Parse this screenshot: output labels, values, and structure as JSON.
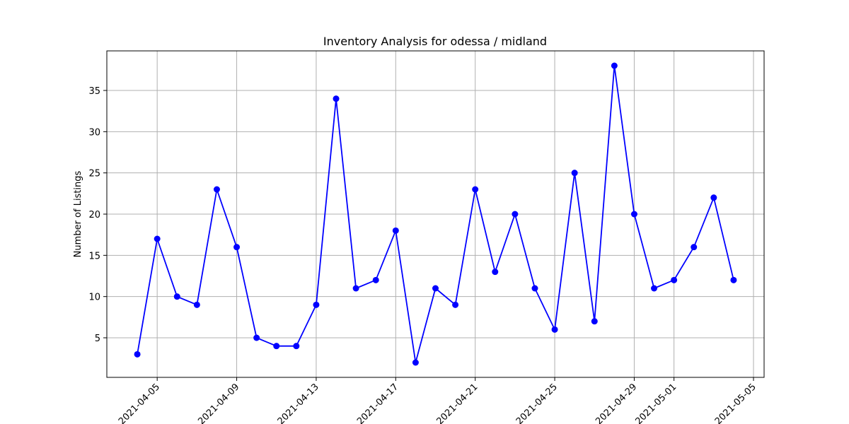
{
  "chart_data": {
    "type": "line",
    "title": "Inventory Analysis for odessa / midland",
    "xlabel": "",
    "ylabel": "Number of Listings",
    "x": [
      "2021-04-04",
      "2021-04-05",
      "2021-04-06",
      "2021-04-07",
      "2021-04-08",
      "2021-04-09",
      "2021-04-10",
      "2021-04-11",
      "2021-04-12",
      "2021-04-13",
      "2021-04-14",
      "2021-04-15",
      "2021-04-16",
      "2021-04-17",
      "2021-04-18",
      "2021-04-19",
      "2021-04-20",
      "2021-04-21",
      "2021-04-22",
      "2021-04-23",
      "2021-04-24",
      "2021-04-25",
      "2021-04-26",
      "2021-04-27",
      "2021-04-28",
      "2021-04-29",
      "2021-04-30",
      "2021-05-01",
      "2021-05-02",
      "2021-05-03",
      "2021-05-04"
    ],
    "series": [
      {
        "values": [
          3,
          17,
          10,
          9,
          23,
          16,
          5,
          4,
          4,
          9,
          34,
          11,
          12,
          18,
          2,
          11,
          9,
          23,
          13,
          20,
          11,
          6,
          25,
          7,
          38,
          20,
          11,
          12,
          16,
          22,
          12
        ],
        "color": "#0000ff",
        "marker": "circle"
      }
    ],
    "xticks": [
      "2021-04-05",
      "2021-04-09",
      "2021-04-13",
      "2021-04-17",
      "2021-04-21",
      "2021-04-25",
      "2021-04-29",
      "2021-05-01",
      "2021-05-05"
    ],
    "yticks": [
      5,
      10,
      15,
      20,
      25,
      30,
      35
    ],
    "xlim": [
      "2021-04-02T11:12",
      "2021-05-05T12:48"
    ],
    "ylim": [
      0.2,
      39.8
    ],
    "grid": true,
    "x_tick_rotation_deg": 45,
    "colors": {
      "line": "#0000ff",
      "grid": "#b0b0b0",
      "axes": "#000000"
    }
  }
}
